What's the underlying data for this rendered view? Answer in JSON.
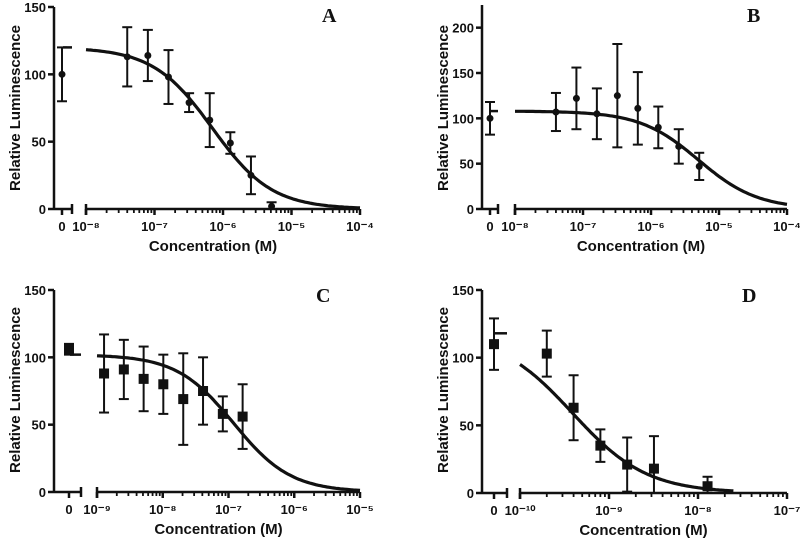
{
  "chart_data": [
    {
      "type": "scatter",
      "panel": "A",
      "xlabel": "Concentration (M)",
      "ylabel": "Relative Luminescence",
      "xscale": "log",
      "x_exponent_range": [
        -8,
        -4
      ],
      "xtick_labels": [
        "0",
        "10⁻⁸",
        "10⁻⁷",
        "10⁻⁶",
        "10⁻⁵",
        "10⁻⁴"
      ],
      "ylim": [
        0,
        150
      ],
      "yticks": [
        0,
        50,
        100,
        150
      ],
      "marker": "circle",
      "zero_point": {
        "y": 100,
        "err": 20
      },
      "points": [
        {
          "x": 4e-08,
          "y": 113,
          "err": 22
        },
        {
          "x": 8e-08,
          "y": 114,
          "err": 19
        },
        {
          "x": 1.6e-07,
          "y": 98,
          "err": 20
        },
        {
          "x": 3.2e-07,
          "y": 79,
          "err": 7
        },
        {
          "x": 6.4e-07,
          "y": 66,
          "err": 20
        },
        {
          "x": 1.28e-06,
          "y": 49,
          "err": 8
        },
        {
          "x": 2.56e-06,
          "y": 25,
          "err": 14
        },
        {
          "x": 5.12e-06,
          "y": 2,
          "err": 3
        }
      ],
      "fit": {
        "top": 120,
        "bottom": 0,
        "ic50": 7e-07,
        "hill": 1,
        "x_range": [
          1e-08,
          0.0001
        ]
      }
    },
    {
      "type": "scatter",
      "panel": "B",
      "xlabel": "Concentration (M)",
      "ylabel": "Relative Luminescence",
      "xscale": "log",
      "x_exponent_range": [
        -8,
        -4
      ],
      "xtick_labels": [
        "0",
        "10⁻⁸",
        "10⁻⁷",
        "10⁻⁶",
        "10⁻⁵",
        "10⁻⁴"
      ],
      "ylim": [
        0,
        225
      ],
      "yticks": [
        0,
        50,
        100,
        150,
        200
      ],
      "marker": "circle",
      "zero_point": {
        "y": 100,
        "err": 18
      },
      "points": [
        {
          "x": 4e-08,
          "y": 107,
          "err": 21
        },
        {
          "x": 8e-08,
          "y": 122,
          "err": 34
        },
        {
          "x": 1.6e-07,
          "y": 105,
          "err": 28
        },
        {
          "x": 3.2e-07,
          "y": 125,
          "err": 57
        },
        {
          "x": 6.4e-07,
          "y": 111,
          "err": 40
        },
        {
          "x": 1.28e-06,
          "y": 90,
          "err": 23
        },
        {
          "x": 2.56e-06,
          "y": 69,
          "err": 19
        },
        {
          "x": 5.12e-06,
          "y": 47,
          "err": 15
        }
      ],
      "fit": {
        "top": 108,
        "bottom": 0,
        "ic50": 5e-06,
        "hill": 1,
        "x_range": [
          1e-08,
          0.0001
        ]
      }
    },
    {
      "type": "scatter",
      "panel": "C",
      "xlabel": "Concentration (M)",
      "ylabel": "Relative Luminescence",
      "xscale": "log",
      "x_exponent_range": [
        -9,
        -5
      ],
      "xtick_labels": [
        "0",
        "10⁻⁹",
        "10⁻⁸",
        "10⁻⁷",
        "10⁻⁶",
        "10⁻⁵"
      ],
      "ylim": [
        0,
        150
      ],
      "yticks": [
        0,
        50,
        100,
        150
      ],
      "marker": "square",
      "zero_point": {
        "y": 106,
        "err": 4
      },
      "points": [
        {
          "x": 1.28e-09,
          "y": 88,
          "err": 29
        },
        {
          "x": 2.56e-09,
          "y": 91,
          "err": 22
        },
        {
          "x": 5.12e-09,
          "y": 84,
          "err": 24
        },
        {
          "x": 1.02e-08,
          "y": 80,
          "err": 22
        },
        {
          "x": 2.05e-08,
          "y": 69,
          "err": 34
        },
        {
          "x": 4.1e-08,
          "y": 75,
          "err": 25
        },
        {
          "x": 8.2e-08,
          "y": 58,
          "err": 13
        },
        {
          "x": 1.64e-07,
          "y": 56,
          "err": 24
        }
      ],
      "fit": {
        "top": 102,
        "bottom": 0,
        "ic50": 1.2e-07,
        "hill": 1,
        "x_range": [
          1e-09,
          1e-05
        ]
      }
    },
    {
      "type": "scatter",
      "panel": "D",
      "xlabel": "Concentration (M)",
      "ylabel": "Relative  Luminescence",
      "xscale": "log",
      "x_exponent_range": [
        -10,
        -7
      ],
      "xtick_labels": [
        "0",
        "10⁻¹⁰",
        "10⁻⁹",
        "10⁻⁸",
        "10⁻⁷"
      ],
      "ylim": [
        0,
        150
      ],
      "yticks": [
        0,
        50,
        100,
        150
      ],
      "marker": "square",
      "zero_point": {
        "y": 110,
        "err": 19
      },
      "points": [
        {
          "x": 2e-10,
          "y": 103,
          "err": 17
        },
        {
          "x": 4e-10,
          "y": 63,
          "err": 24
        },
        {
          "x": 8e-10,
          "y": 35,
          "err": 12
        },
        {
          "x": 1.6e-09,
          "y": 21,
          "err": 20
        },
        {
          "x": 3.2e-09,
          "y": 18,
          "err": 24
        },
        {
          "x": 1.28e-08,
          "y": 5,
          "err": 7
        }
      ],
      "fit": {
        "top": 118,
        "bottom": 0,
        "ic50": 3.9e-10,
        "hill": 1.04,
        "x_range": [
          1e-10,
          2.5e-08
        ]
      }
    }
  ]
}
